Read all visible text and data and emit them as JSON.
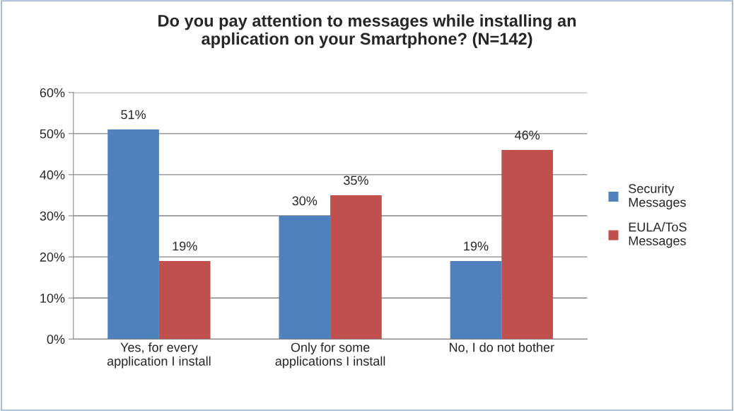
{
  "chart_data": {
    "type": "bar",
    "title": "Do you pay attention to messages while installing an\napplication on your Smartphone? (N=142)",
    "categories": [
      "Yes, for every\napplication I install",
      "Only for some\napplications I install",
      "No, I do not bother"
    ],
    "series": [
      {
        "name": "Security\nMessages",
        "color": "#4f81bd",
        "values": [
          51,
          30,
          19
        ],
        "value_labels": [
          "51%",
          "30%",
          "19%"
        ]
      },
      {
        "name": "EULA/ToS\nMessages",
        "color": "#c0504d",
        "values": [
          19,
          35,
          46
        ],
        "value_labels": [
          "19%",
          "35%",
          "46%"
        ]
      }
    ],
    "ylim": [
      0,
      60
    ],
    "yticks": [
      {
        "value": 0,
        "label": "0%"
      },
      {
        "value": 10,
        "label": "10%"
      },
      {
        "value": 20,
        "label": "20%"
      },
      {
        "value": 30,
        "label": "30%"
      },
      {
        "value": 40,
        "label": "40%"
      },
      {
        "value": 50,
        "label": "50%"
      },
      {
        "value": 60,
        "label": "60%"
      }
    ],
    "grid": "y",
    "legend": "right"
  }
}
